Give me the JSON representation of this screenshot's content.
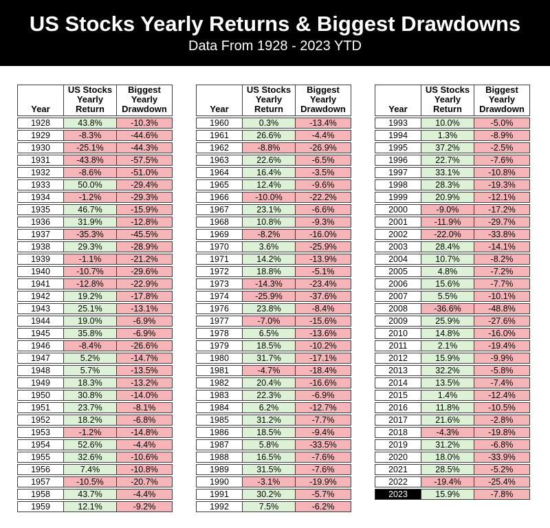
{
  "header": {
    "title": "US Stocks Yearly Returns & Biggest Drawdowns",
    "subtitle": "Data From 1928 - 2023 YTD"
  },
  "colors": {
    "banner_bg": "#000000",
    "banner_text": "#ffffff",
    "positive_bg": "#ddf1d6",
    "negative_bg": "#f5b4b8",
    "grid_border": "#3c3c3c",
    "highlight_year_bg": "#000000",
    "highlight_year_text": "#ffffff"
  },
  "chart_data": {
    "type": "table",
    "title": "US Stocks Yearly Returns & Biggest Drawdowns",
    "subtitle": "Data From 1928 - 2023 YTD",
    "columns": [
      "Year",
      "US Stocks Yearly Return",
      "Biggest Yearly Drawdown"
    ],
    "columns_display": {
      "year": "Year",
      "return": "US Stocks\nYearly\nReturn",
      "drawdown": "Biggest\nYearly\nDrawdown"
    },
    "highlight_year": "2023",
    "color_rule": "return cell green if value >= 0 else pink; drawdown cell always pink",
    "tables": [
      {
        "rows": [
          [
            "1928",
            "43.8%",
            "-10.3%"
          ],
          [
            "1929",
            "-8.3%",
            "-44.6%"
          ],
          [
            "1930",
            "-25.1%",
            "-44.3%"
          ],
          [
            "1931",
            "-43.8%",
            "-57.5%"
          ],
          [
            "1932",
            "-8.6%",
            "-51.0%"
          ],
          [
            "1933",
            "50.0%",
            "-29.4%"
          ],
          [
            "1934",
            "-1.2%",
            "-29.3%"
          ],
          [
            "1935",
            "46.7%",
            "-15.9%"
          ],
          [
            "1936",
            "31.9%",
            "-12.8%"
          ],
          [
            "1937",
            "-35.3%",
            "-45.5%"
          ],
          [
            "1938",
            "29.3%",
            "-28.9%"
          ],
          [
            "1939",
            "-1.1%",
            "-21.2%"
          ],
          [
            "1940",
            "-10.7%",
            "-29.6%"
          ],
          [
            "1941",
            "-12.8%",
            "-22.9%"
          ],
          [
            "1942",
            "19.2%",
            "-17.8%"
          ],
          [
            "1943",
            "25.1%",
            "-13.1%"
          ],
          [
            "1944",
            "19.0%",
            "-6.9%"
          ],
          [
            "1945",
            "35.8%",
            "-6.9%"
          ],
          [
            "1946",
            "-8.4%",
            "-26.6%"
          ],
          [
            "1947",
            "5.2%",
            "-14.7%"
          ],
          [
            "1948",
            "5.7%",
            "-13.5%"
          ],
          [
            "1949",
            "18.3%",
            "-13.2%"
          ],
          [
            "1950",
            "30.8%",
            "-14.0%"
          ],
          [
            "1951",
            "23.7%",
            "-8.1%"
          ],
          [
            "1952",
            "18.2%",
            "-6.8%"
          ],
          [
            "1953",
            "-1.2%",
            "-14.8%"
          ],
          [
            "1954",
            "52.6%",
            "-4.4%"
          ],
          [
            "1955",
            "32.6%",
            "-10.6%"
          ],
          [
            "1956",
            "7.4%",
            "-10.8%"
          ],
          [
            "1957",
            "-10.5%",
            "-20.7%"
          ],
          [
            "1958",
            "43.7%",
            "-4.4%"
          ],
          [
            "1959",
            "12.1%",
            "-9.2%"
          ]
        ]
      },
      {
        "rows": [
          [
            "1960",
            "0.3%",
            "-13.4%"
          ],
          [
            "1961",
            "26.6%",
            "-4.4%"
          ],
          [
            "1962",
            "-8.8%",
            "-26.9%"
          ],
          [
            "1963",
            "22.6%",
            "-6.5%"
          ],
          [
            "1964",
            "16.4%",
            "-3.5%"
          ],
          [
            "1965",
            "12.4%",
            "-9.6%"
          ],
          [
            "1966",
            "-10.0%",
            "-22.2%"
          ],
          [
            "1967",
            "23.1%",
            "-6.6%"
          ],
          [
            "1968",
            "10.8%",
            "-9.3%"
          ],
          [
            "1969",
            "-8.2%",
            "-16.0%"
          ],
          [
            "1970",
            "3.6%",
            "-25.9%"
          ],
          [
            "1971",
            "14.2%",
            "-13.9%"
          ],
          [
            "1972",
            "18.8%",
            "-5.1%"
          ],
          [
            "1973",
            "-14.3%",
            "-23.4%"
          ],
          [
            "1974",
            "-25.9%",
            "-37.6%"
          ],
          [
            "1976",
            "23.8%",
            "-8.4%"
          ],
          [
            "1977",
            "-7.0%",
            "-15.6%"
          ],
          [
            "1978",
            "6.5%",
            "-13.6%"
          ],
          [
            "1979",
            "18.5%",
            "-10.2%"
          ],
          [
            "1980",
            "31.7%",
            "-17.1%"
          ],
          [
            "1981",
            "-4.7%",
            "-18.4%"
          ],
          [
            "1982",
            "20.4%",
            "-16.6%"
          ],
          [
            "1983",
            "22.3%",
            "-6.9%"
          ],
          [
            "1984",
            "6.2%",
            "-12.7%"
          ],
          [
            "1985",
            "31.2%",
            "-7.7%"
          ],
          [
            "1986",
            "18.5%",
            "-9.4%"
          ],
          [
            "1987",
            "5.8%",
            "-33.5%"
          ],
          [
            "1988",
            "16.5%",
            "-7.6%"
          ],
          [
            "1989",
            "31.5%",
            "-7.6%"
          ],
          [
            "1990",
            "-3.1%",
            "-19.9%"
          ],
          [
            "1991",
            "30.2%",
            "-5.7%"
          ],
          [
            "1992",
            "7.5%",
            "-6.2%"
          ]
        ]
      },
      {
        "rows": [
          [
            "1993",
            "10.0%",
            "-5.0%"
          ],
          [
            "1994",
            "1.3%",
            "-8.9%"
          ],
          [
            "1995",
            "37.2%",
            "-2.5%"
          ],
          [
            "1996",
            "22.7%",
            "-7.6%"
          ],
          [
            "1997",
            "33.1%",
            "-10.8%"
          ],
          [
            "1998",
            "28.3%",
            "-19.3%"
          ],
          [
            "1999",
            "20.9%",
            "-12.1%"
          ],
          [
            "2000",
            "-9.0%",
            "-17.2%"
          ],
          [
            "2001",
            "-11.9%",
            "-29.7%"
          ],
          [
            "2002",
            "-22.0%",
            "-33.8%"
          ],
          [
            "2003",
            "28.4%",
            "-14.1%"
          ],
          [
            "2004",
            "10.7%",
            "-8.2%"
          ],
          [
            "2005",
            "4.8%",
            "-7.2%"
          ],
          [
            "2006",
            "15.6%",
            "-7.7%"
          ],
          [
            "2007",
            "5.5%",
            "-10.1%"
          ],
          [
            "2008",
            "-36.6%",
            "-48.8%"
          ],
          [
            "2009",
            "25.9%",
            "-27.6%"
          ],
          [
            "2010",
            "14.8%",
            "-16.0%"
          ],
          [
            "2011",
            "2.1%",
            "-19.4%"
          ],
          [
            "2012",
            "15.9%",
            "-9.9%"
          ],
          [
            "2013",
            "32.2%",
            "-5.8%"
          ],
          [
            "2014",
            "13.5%",
            "-7.4%"
          ],
          [
            "2015",
            "1.4%",
            "-12.4%"
          ],
          [
            "2016",
            "11.8%",
            "-10.5%"
          ],
          [
            "2017",
            "21.6%",
            "-2.8%"
          ],
          [
            "2018",
            "-4.3%",
            "-19.8%"
          ],
          [
            "2019",
            "31.2%",
            "-6.8%"
          ],
          [
            "2020",
            "18.0%",
            "-33.9%"
          ],
          [
            "2021",
            "28.5%",
            "-5.2%"
          ],
          [
            "2022",
            "-19.4%",
            "-25.4%"
          ],
          [
            "2023",
            "15.9%",
            "-7.8%"
          ]
        ]
      }
    ]
  }
}
